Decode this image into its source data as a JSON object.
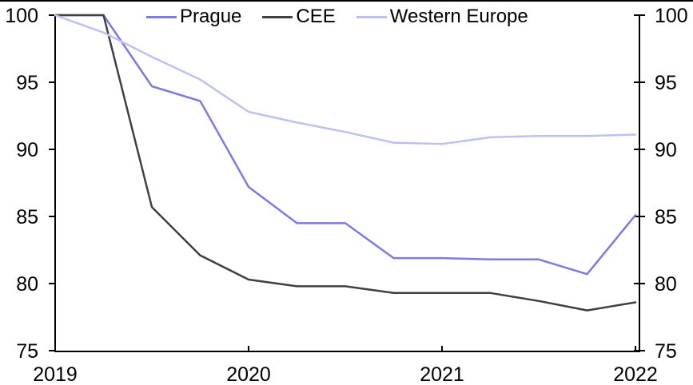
{
  "chart_data": {
    "type": "line",
    "title": "",
    "xlabel": "",
    "ylabel": "",
    "categories": [
      "2019 Q1",
      "2019 Q2",
      "2019 Q3",
      "2019 Q4",
      "2020 Q1",
      "2020 Q2",
      "2020 Q3",
      "2020 Q4",
      "2021 Q1",
      "2021 Q2",
      "2021 Q3",
      "2021 Q4",
      "2022 Q1"
    ],
    "series": [
      {
        "name": "Prague",
        "color": "#7b7be2",
        "values": [
          100,
          100,
          94.7,
          93.6,
          87.2,
          84.5,
          84.5,
          81.9,
          81.9,
          81.8,
          81.8,
          80.7,
          85.1
        ]
      },
      {
        "name": "CEE",
        "color": "#404040",
        "values": [
          100,
          100,
          85.7,
          82.1,
          80.3,
          79.8,
          79.8,
          79.3,
          79.3,
          79.3,
          78.7,
          78.0,
          78.6
        ]
      },
      {
        "name": "Western Europe",
        "color": "#bdc1f2",
        "values": [
          100,
          98.7,
          96.9,
          95.2,
          92.8,
          92.0,
          91.3,
          90.5,
          90.4,
          90.9,
          91.0,
          91.0,
          91.1
        ]
      }
    ],
    "x_axis": {
      "tick_labels": [
        "2019",
        "2020",
        "2021",
        "2022"
      ],
      "tick_category_indices": [
        0,
        4,
        8,
        12
      ]
    },
    "y_axis": {
      "min": 75,
      "max": 100,
      "ticks": [
        75,
        80,
        85,
        90,
        95,
        100
      ],
      "mirrored_right_axis": true
    },
    "grid": false,
    "legend_position": "top-center",
    "axis_color": "#000000"
  }
}
